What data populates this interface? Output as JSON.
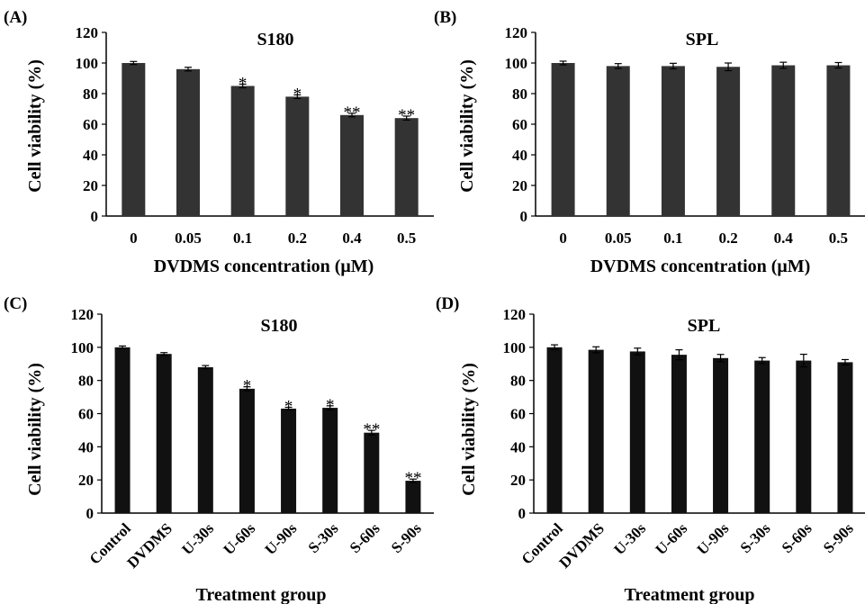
{
  "chart_data": [
    {
      "type": "bar",
      "panel_label": "(A)",
      "title": "S180",
      "xlabel": "DVDMS concentration (μM)",
      "ylabel": "Cell viability (%)",
      "categories": [
        "0",
        "0.05",
        "0.1",
        "0.2",
        "0.4",
        "0.5"
      ],
      "values": [
        100,
        96,
        85,
        78,
        66,
        64
      ],
      "errors": [
        1.0,
        1.2,
        1.2,
        1.2,
        1.2,
        1.3
      ],
      "significance": [
        "",
        "",
        "*",
        "*",
        "**",
        "**"
      ],
      "ylim": [
        0,
        120
      ],
      "yticks": [
        0,
        20,
        40,
        60,
        80,
        100,
        120
      ],
      "bar_color": "#333333",
      "grid": false,
      "rotate_categories": false
    },
    {
      "type": "bar",
      "panel_label": "(B)",
      "title": "SPL",
      "xlabel": "DVDMS concentration (μM)",
      "ylabel": "Cell viability (%)",
      "categories": [
        "0",
        "0.05",
        "0.1",
        "0.2",
        "0.4",
        "0.5"
      ],
      "values": [
        100,
        98,
        98,
        97.5,
        98.5,
        98.5
      ],
      "errors": [
        1.2,
        1.6,
        1.8,
        2.5,
        2.0,
        1.8
      ],
      "significance": [
        "",
        "",
        "",
        "",
        "",
        ""
      ],
      "ylim": [
        0,
        120
      ],
      "yticks": [
        0,
        20,
        40,
        60,
        80,
        100,
        120
      ],
      "bar_color": "#333333",
      "grid": false,
      "rotate_categories": false
    },
    {
      "type": "bar",
      "panel_label": "(C)",
      "title": "S180",
      "xlabel": "Treatment group",
      "ylabel": "Cell viability (%)",
      "categories": [
        "Control",
        "DVDMS",
        "U-30s",
        "U-60s",
        "U-90s",
        "S-30s",
        "S-60s",
        "S-90s"
      ],
      "values": [
        100,
        96,
        88,
        75,
        63,
        63.5,
        48.5,
        19.5
      ],
      "errors": [
        0.8,
        0.8,
        1.0,
        1.2,
        0.8,
        1.2,
        1.4,
        1.0
      ],
      "significance": [
        "",
        "",
        "",
        "*",
        "*",
        "*",
        "**",
        "**"
      ],
      "ylim": [
        0,
        120
      ],
      "yticks": [
        0,
        20,
        40,
        60,
        80,
        100,
        120
      ],
      "bar_color": "#111111",
      "grid": false,
      "rotate_categories": true
    },
    {
      "type": "bar",
      "panel_label": "(D)",
      "title": "SPL",
      "xlabel": "Treatment group",
      "ylabel": "Cell viability (%)",
      "categories": [
        "Control",
        "DVDMS",
        "U-30s",
        "U-60s",
        "U-90s",
        "S-30s",
        "S-60s",
        "S-90s"
      ],
      "values": [
        100,
        98.5,
        97.5,
        95.5,
        93.5,
        92,
        92,
        91
      ],
      "errors": [
        1.5,
        1.8,
        2.0,
        3.0,
        2.2,
        1.8,
        3.8,
        1.6
      ],
      "significance": [
        "",
        "",
        "",
        "",
        "",
        "",
        "",
        ""
      ],
      "ylim": [
        0,
        120
      ],
      "yticks": [
        0,
        20,
        40,
        60,
        80,
        100,
        120
      ],
      "bar_color": "#111111",
      "grid": false,
      "rotate_categories": true
    }
  ]
}
